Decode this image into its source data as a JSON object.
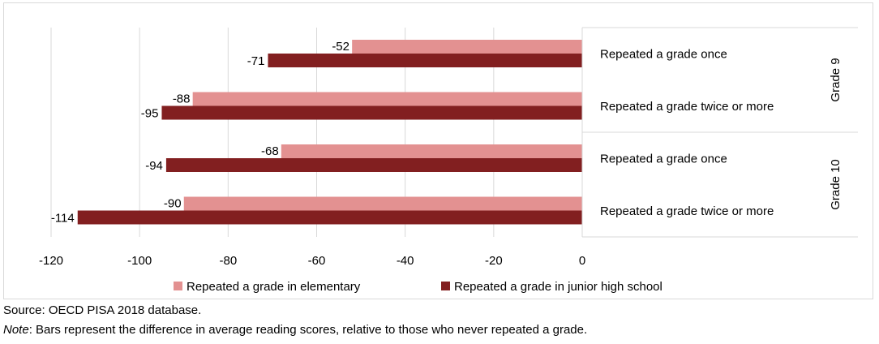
{
  "chart_data": {
    "type": "bar",
    "orientation": "horizontal",
    "groups": [
      {
        "label": "Grade 9",
        "categories": [
          {
            "label": "Repeated a grade once",
            "elementary": -52,
            "junior_high": -71
          },
          {
            "label": "Repeated a grade twice or more",
            "elementary": -88,
            "junior_high": -95
          }
        ]
      },
      {
        "label": "Grade 10",
        "categories": [
          {
            "label": "Repeated a grade once",
            "elementary": -68,
            "junior_high": -94
          },
          {
            "label": "Repeated a grade twice or more",
            "elementary": -90,
            "junior_high": -114
          }
        ]
      }
    ],
    "series": [
      {
        "key": "elementary",
        "name": "Repeated a grade in elementary",
        "color": "#e39191"
      },
      {
        "key": "junior_high",
        "name": "Repeated a grade in junior high school",
        "color": "#821f20"
      }
    ],
    "xlim": [
      -120,
      0
    ],
    "xticks": [
      -120,
      -100,
      -80,
      -60,
      -40,
      -20,
      0
    ],
    "grid": "vertical",
    "legend_position": "bottom"
  },
  "footer": {
    "source": "Source: OECD PISA 2018 database.",
    "note_label": "Note",
    "note_text": ": Bars represent the difference in average reading scores, relative to those who never repeated a grade."
  }
}
